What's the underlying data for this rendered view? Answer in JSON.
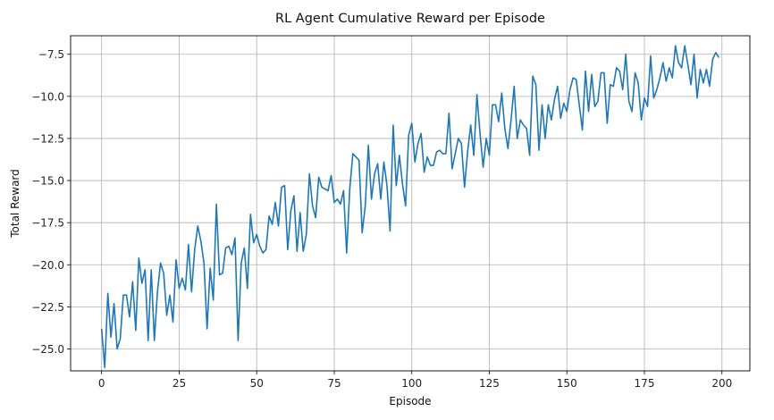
{
  "chart_data": {
    "type": "line",
    "title": "RL Agent Cumulative Reward per Episode",
    "xlabel": "Episode",
    "ylabel": "Total Reward",
    "xlim": [
      -10,
      209
    ],
    "ylim": [
      -26.3,
      -6.4
    ],
    "xticks": [
      0,
      25,
      50,
      75,
      100,
      125,
      150,
      175,
      200
    ],
    "yticks": [
      -25.0,
      -22.5,
      -20.0,
      -17.5,
      -15.0,
      -12.5,
      -10.0,
      -7.5
    ],
    "xtick_labels": [
      "0",
      "25",
      "50",
      "75",
      "100",
      "125",
      "150",
      "175",
      "200"
    ],
    "ytick_labels": [
      "−25.0",
      "−22.5",
      "−20.0",
      "−17.5",
      "−15.0",
      "−12.5",
      "−10.0",
      "−7.5"
    ],
    "grid": true,
    "legend": "none",
    "series": [
      {
        "color": "#1f77b4",
        "y": [
          -23.8,
          -26.1,
          -21.7,
          -24.3,
          -22.3,
          -25.0,
          -24.4,
          -21.8,
          -21.8,
          -23.1,
          -21.0,
          -23.9,
          -19.6,
          -21.1,
          -20.3,
          -24.5,
          -20.3,
          -24.5,
          -21.6,
          -19.9,
          -20.5,
          -23.0,
          -21.8,
          -23.4,
          -19.7,
          -21.4,
          -20.8,
          -21.5,
          -18.8,
          -21.6,
          -19.1,
          -17.7,
          -18.6,
          -19.9,
          -23.8,
          -20.2,
          -22.1,
          -16.4,
          -20.6,
          -20.5,
          -19.0,
          -18.9,
          -19.4,
          -18.4,
          -24.5,
          -19.9,
          -19.0,
          -21.4,
          -17.0,
          -18.7,
          -18.2,
          -18.9,
          -19.3,
          -19.1,
          -17.1,
          -17.6,
          -16.3,
          -17.7,
          -15.4,
          -15.3,
          -19.1,
          -16.8,
          -15.9,
          -19.2,
          -16.9,
          -19.2,
          -18.2,
          -14.6,
          -16.5,
          -17.2,
          -14.8,
          -15.4,
          -15.5,
          -15.6,
          -14.7,
          -16.3,
          -16.1,
          -16.4,
          -15.6,
          -19.3,
          -15.5,
          -13.4,
          -13.6,
          -13.8,
          -18.1,
          -16.5,
          -12.9,
          -16.1,
          -14.6,
          -14.0,
          -16.1,
          -13.9,
          -15.3,
          -18.0,
          -11.7,
          -15.3,
          -13.5,
          -15.2,
          -16.5,
          -12.3,
          -11.6,
          -13.9,
          -12.8,
          -12.2,
          -14.5,
          -13.6,
          -14.1,
          -14.1,
          -13.3,
          -13.2,
          -13.4,
          -13.4,
          -11.0,
          -14.3,
          -13.4,
          -12.5,
          -12.8,
          -15.4,
          -13.3,
          -11.7,
          -13.5,
          -9.9,
          -12.2,
          -14.2,
          -12.5,
          -13.5,
          -10.5,
          -10.5,
          -11.5,
          -9.8,
          -11.9,
          -13.1,
          -11.4,
          -9.4,
          -12.5,
          -11.4,
          -11.7,
          -11.9,
          -13.5,
          -8.8,
          -9.3,
          -13.2,
          -10.5,
          -12.5,
          -10.5,
          -11.4,
          -10.2,
          -9.4,
          -11.3,
          -10.4,
          -10.9,
          -9.6,
          -8.9,
          -9.0,
          -10.5,
          -12.0,
          -8.5,
          -10.9,
          -8.7,
          -10.6,
          -10.3,
          -8.6,
          -8.6,
          -11.6,
          -9.3,
          -9.4,
          -8.3,
          -8.5,
          -9.6,
          -7.5,
          -10.3,
          -10.9,
          -8.6,
          -9.2,
          -11.4,
          -10.1,
          -10.6,
          -7.6,
          -10.1,
          -9.6,
          -8.9,
          -8.0,
          -9.1,
          -8.3,
          -8.9,
          -7.0,
          -8.0,
          -8.3,
          -7.0,
          -8.1,
          -9.3,
          -7.5,
          -10.1,
          -8.4,
          -9.2,
          -8.4,
          -9.4,
          -7.8,
          -7.4,
          -7.7
        ]
      }
    ]
  }
}
